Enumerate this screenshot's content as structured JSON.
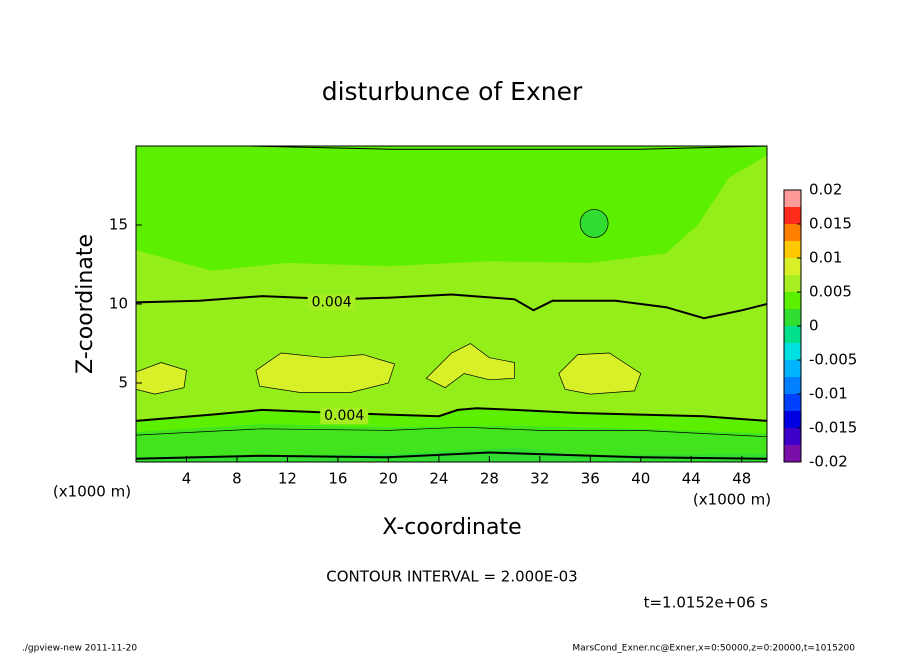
{
  "chart_data": {
    "type": "contour",
    "title": "disturbunce of Exner",
    "x_label": "X-coordinate",
    "y_label": "Z-coordinate",
    "x_unit_left": "(x1000 m)",
    "x_unit_right": "(x1000 m)",
    "xlim": [
      0,
      50
    ],
    "xticks": [
      4,
      8,
      12,
      16,
      20,
      24,
      28,
      32,
      36,
      40,
      44,
      48
    ],
    "ylim": [
      0,
      20
    ],
    "yticks": [
      5,
      10,
      15
    ],
    "levels": [
      -0.02,
      -0.0175,
      -0.015,
      -0.0125,
      -0.01,
      -0.0075,
      -0.005,
      -0.0025,
      0,
      0.0025,
      0.005,
      0.0075,
      0.01,
      0.0125,
      0.015,
      0.0175,
      0.02
    ],
    "colors": [
      "#7a10a8",
      "#3c00c8",
      "#0000e0",
      "#0040ff",
      "#0080ff",
      "#00b4ff",
      "#00e0e0",
      "#00e08a",
      "#30dd30",
      "#5cf000",
      "#a6ee22",
      "#d8f028",
      "#ffc800",
      "#ff8000",
      "#ff2a1a",
      "#ff9a9a"
    ],
    "cticks": [
      0.02,
      0.015,
      0.01,
      0.005,
      0,
      -0.005,
      -0.01,
      -0.015,
      -0.02
    ],
    "contour_labels": [
      0.004,
      0.004
    ],
    "contour_interval": "CONTOUR INTERVAL = 2.000E-03",
    "time": "t=1.0152e+06 s",
    "footer_left": "./gpview-new  2011-11-20",
    "footer_right": "MarsCond_Exner.nc@Exner,x=0:50000,z=0:20000,t=1015200"
  }
}
